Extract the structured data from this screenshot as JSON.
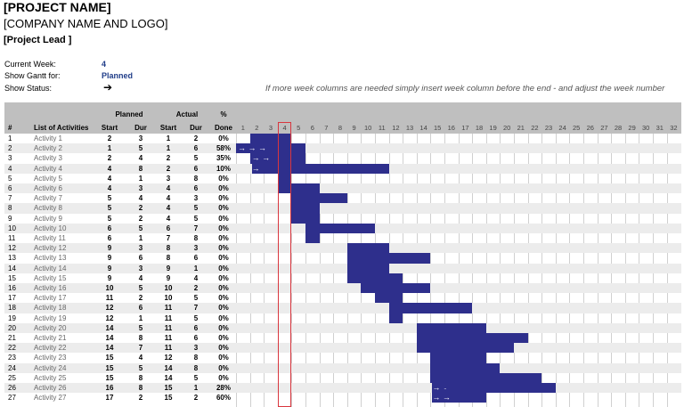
{
  "header": {
    "project_name": "[PROJECT NAME]",
    "company": "[COMPANY NAME AND LOGO]",
    "project_lead": "[Project Lead ]"
  },
  "params": {
    "current_week_label": "Current Week:",
    "current_week": "4",
    "show_gantt_label": "Show Gantt for:",
    "show_gantt": "Planned",
    "show_status_label": "Show Status:",
    "show_status_icon": "right-arrow-icon"
  },
  "note": "If more week columns are needed simply insert week column before the end  - and adjust the week number",
  "table": {
    "group_planned": "Planned",
    "group_actual": "Actual",
    "group_pct": "%",
    "col_num": "#",
    "col_activity": "List of Activities",
    "col_start": "Start",
    "col_dur": "Dur",
    "col_astart": "Start",
    "col_adur": "Dur",
    "col_done": "Done",
    "weeks": [
      "1",
      "2",
      "3",
      "4",
      "5",
      "6",
      "7",
      "8",
      "9",
      "10",
      "11",
      "12",
      "13",
      "14",
      "15",
      "16",
      "17",
      "18",
      "19",
      "20",
      "21",
      "22",
      "23",
      "24",
      "25",
      "26",
      "27",
      "28",
      "29",
      "30",
      "31",
      "32"
    ],
    "rows": [
      {
        "num": "1",
        "activity": "Activity 1",
        "ps": "2",
        "pd": "3",
        "as": "1",
        "ad": "2",
        "pct": "0%",
        "arrows": ""
      },
      {
        "num": "2",
        "activity": "Activity 2",
        "ps": "1",
        "pd": "5",
        "as": "1",
        "ad": "6",
        "pct": "58%",
        "arrows": "→ → →"
      },
      {
        "num": "3",
        "activity": "Activity 3",
        "ps": "2",
        "pd": "4",
        "as": "2",
        "ad": "5",
        "pct": "35%",
        "arrows": "→ →"
      },
      {
        "num": "4",
        "activity": "Activity 4",
        "ps": "4",
        "pd": "8",
        "as": "2",
        "ad": "6",
        "pct": "10%",
        "arrows": "→"
      },
      {
        "num": "5",
        "activity": "Activity 5",
        "ps": "4",
        "pd": "1",
        "as": "3",
        "ad": "8",
        "pct": "0%",
        "arrows": ""
      },
      {
        "num": "6",
        "activity": "Activity 6",
        "ps": "4",
        "pd": "3",
        "as": "4",
        "ad": "6",
        "pct": "0%",
        "arrows": ""
      },
      {
        "num": "7",
        "activity": "Activity 7",
        "ps": "5",
        "pd": "4",
        "as": "4",
        "ad": "3",
        "pct": "0%",
        "arrows": ""
      },
      {
        "num": "8",
        "activity": "Activity 8",
        "ps": "5",
        "pd": "2",
        "as": "4",
        "ad": "5",
        "pct": "0%",
        "arrows": ""
      },
      {
        "num": "9",
        "activity": "Activity 9",
        "ps": "5",
        "pd": "2",
        "as": "4",
        "ad": "5",
        "pct": "0%",
        "arrows": ""
      },
      {
        "num": "10",
        "activity": "Activity 10",
        "ps": "6",
        "pd": "5",
        "as": "6",
        "ad": "7",
        "pct": "0%",
        "arrows": ""
      },
      {
        "num": "11",
        "activity": "Activity 11",
        "ps": "6",
        "pd": "1",
        "as": "7",
        "ad": "8",
        "pct": "0%",
        "arrows": ""
      },
      {
        "num": "12",
        "activity": "Activity 12",
        "ps": "9",
        "pd": "3",
        "as": "8",
        "ad": "3",
        "pct": "0%",
        "arrows": ""
      },
      {
        "num": "13",
        "activity": "Activity 13",
        "ps": "9",
        "pd": "6",
        "as": "8",
        "ad": "6",
        "pct": "0%",
        "arrows": ""
      },
      {
        "num": "14",
        "activity": "Activity 14",
        "ps": "9",
        "pd": "3",
        "as": "9",
        "ad": "1",
        "pct": "0%",
        "arrows": ""
      },
      {
        "num": "15",
        "activity": "Activity 15",
        "ps": "9",
        "pd": "4",
        "as": "9",
        "ad": "4",
        "pct": "0%",
        "arrows": ""
      },
      {
        "num": "16",
        "activity": "Activity 16",
        "ps": "10",
        "pd": "5",
        "as": "10",
        "ad": "2",
        "pct": "0%",
        "arrows": ""
      },
      {
        "num": "17",
        "activity": "Activity 17",
        "ps": "11",
        "pd": "2",
        "as": "10",
        "ad": "5",
        "pct": "0%",
        "arrows": ""
      },
      {
        "num": "18",
        "activity": "Activity 18",
        "ps": "12",
        "pd": "6",
        "as": "11",
        "ad": "7",
        "pct": "0%",
        "arrows": ""
      },
      {
        "num": "19",
        "activity": "Activity 19",
        "ps": "12",
        "pd": "1",
        "as": "11",
        "ad": "5",
        "pct": "0%",
        "arrows": ""
      },
      {
        "num": "20",
        "activity": "Activity 20",
        "ps": "14",
        "pd": "5",
        "as": "11",
        "ad": "6",
        "pct": "0%",
        "arrows": ""
      },
      {
        "num": "21",
        "activity": "Activity 21",
        "ps": "14",
        "pd": "8",
        "as": "11",
        "ad": "6",
        "pct": "0%",
        "arrows": ""
      },
      {
        "num": "22",
        "activity": "Activity 22",
        "ps": "14",
        "pd": "7",
        "as": "11",
        "ad": "3",
        "pct": "0%",
        "arrows": ""
      },
      {
        "num": "23",
        "activity": "Activity 23",
        "ps": "15",
        "pd": "4",
        "as": "12",
        "ad": "8",
        "pct": "0%",
        "arrows": ""
      },
      {
        "num": "24",
        "activity": "Activity 24",
        "ps": "15",
        "pd": "5",
        "as": "14",
        "ad": "8",
        "pct": "0%",
        "arrows": ""
      },
      {
        "num": "25",
        "activity": "Activity 25",
        "ps": "15",
        "pd": "8",
        "as": "14",
        "ad": "5",
        "pct": "0%",
        "arrows": ""
      },
      {
        "num": "26",
        "activity": "Activity 26",
        "ps": "16",
        "pd": "8",
        "as": "15",
        "ad": "1",
        "pct": "28%",
        "arrows": "→ → →"
      },
      {
        "num": "27",
        "activity": "Activity 27",
        "ps": "17",
        "pd": "2",
        "as": "15",
        "ad": "2",
        "pct": "60%",
        "arrows": "→ →"
      }
    ]
  },
  "colors": {
    "bar": "#2e2f8c",
    "header_band": "#bfbfbf",
    "current_week_outline": "#d9363e",
    "value_blue": "#1f3c88"
  }
}
